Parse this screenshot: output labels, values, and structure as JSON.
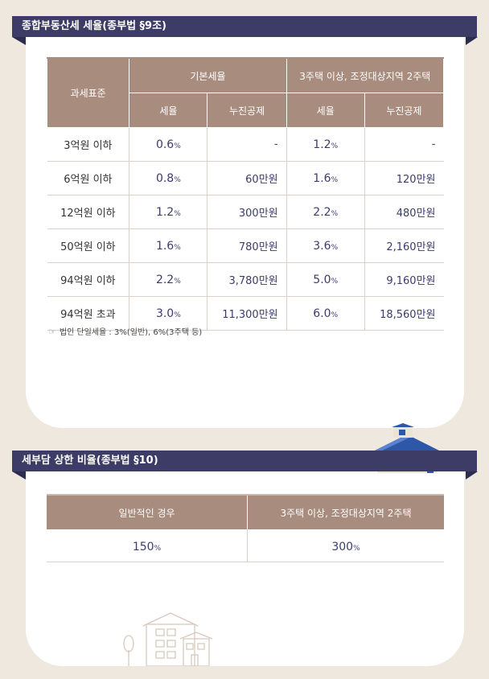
{
  "section1": {
    "title": "종합부동산세 세율(종부법 §9조)",
    "header": {
      "base": "과세표준",
      "group_basic": "기본세율",
      "group_multi": "3주택 이상, 조정대상지역 2주택",
      "rate": "세율",
      "deduction": "누진공제"
    },
    "rows": [
      {
        "base": "3억원 이하",
        "basic_rate": "0.6",
        "basic_ded": "-",
        "multi_rate": "1.2",
        "multi_ded": "-"
      },
      {
        "base": "6억원 이하",
        "basic_rate": "0.8",
        "basic_ded": "60",
        "multi_rate": "1.6",
        "multi_ded": "120"
      },
      {
        "base": "12억원 이하",
        "basic_rate": "1.2",
        "basic_ded": "300",
        "multi_rate": "2.2",
        "multi_ded": "480"
      },
      {
        "base": "50억원 이하",
        "basic_rate": "1.6",
        "basic_ded": "780",
        "multi_rate": "3.6",
        "multi_ded": "2,160"
      },
      {
        "base": "94억원 이하",
        "basic_rate": "2.2",
        "basic_ded": "3,780",
        "multi_rate": "5.0",
        "multi_ded": "9,160"
      },
      {
        "base": "94억원 초과",
        "basic_rate": "3.0",
        "basic_ded": "11,300",
        "multi_rate": "6.0",
        "multi_ded": "18,560"
      }
    ],
    "percent_unit": "%",
    "won_unit": "만원",
    "note": "법인 단일세율 : 3%(일반), 6%(3주택 등)"
  },
  "section2": {
    "title": "세부담 상한 비율(종부법 §10)",
    "header": {
      "general": "일반적인 경우",
      "multi": "3주택 이상, 조정대상지역 2주택"
    },
    "values": {
      "general": "150",
      "multi": "300"
    },
    "percent_unit": "%"
  },
  "colors": {
    "banner": "#3c3c66",
    "header": "#a88c7e",
    "number": "#3b3b6e",
    "background": "#efe8df"
  },
  "icons": {
    "note": "hand-pointing-icon",
    "house": "house-illustration-icon",
    "building": "building-sketch-icon"
  }
}
